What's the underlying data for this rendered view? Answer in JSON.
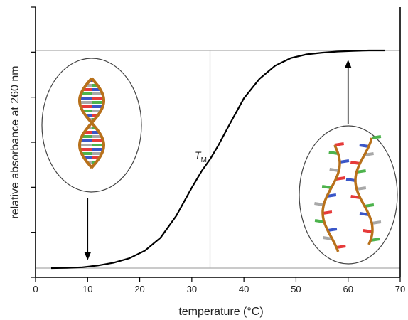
{
  "chart_data": {
    "type": "line",
    "title": "",
    "xlabel": "temperature (°C)",
    "ylabel": "relative absorbance at 260 nm",
    "xlim": [
      0,
      70
    ],
    "ylim": [
      0,
      1
    ],
    "x_ticks": [
      0,
      10,
      20,
      30,
      40,
      50,
      60,
      70
    ],
    "y_ticks_labeled": false,
    "grid": false,
    "annotation": {
      "text": "T",
      "subscript": "M",
      "x": 33.5
    },
    "series": [
      {
        "x": [
          3,
          6,
          9,
          12,
          15,
          18,
          21,
          24,
          27,
          30,
          32,
          33.5,
          35,
          37,
          40,
          43,
          46,
          49,
          52,
          55,
          58,
          61,
          64,
          67
        ],
        "y": [
          0.0,
          0.001,
          0.004,
          0.012,
          0.025,
          0.045,
          0.08,
          0.14,
          0.24,
          0.37,
          0.45,
          0.5,
          0.56,
          0.65,
          0.78,
          0.87,
          0.93,
          0.965,
          0.982,
          0.99,
          0.995,
          0.998,
          1.0,
          1.0
        ]
      }
    ],
    "reference_lines": {
      "vertical_x": 33.5,
      "horizontal_levels": [
        0,
        1
      ]
    },
    "illustrations": [
      {
        "name": "double-helix-dna",
        "state": "native",
        "points_to_x": 10,
        "arrow": "down"
      },
      {
        "name": "separated-single-strands",
        "state": "denatured",
        "points_to_x": 60,
        "arrow": "up"
      }
    ],
    "colors": {
      "curve": "#000000",
      "reference": "#aaaaaa",
      "backbone": "#b8711b",
      "base_red": "#e63a3a",
      "base_green": "#4db34d",
      "base_blue": "#3a56c8",
      "base_grey": "#a8a8a8"
    }
  }
}
